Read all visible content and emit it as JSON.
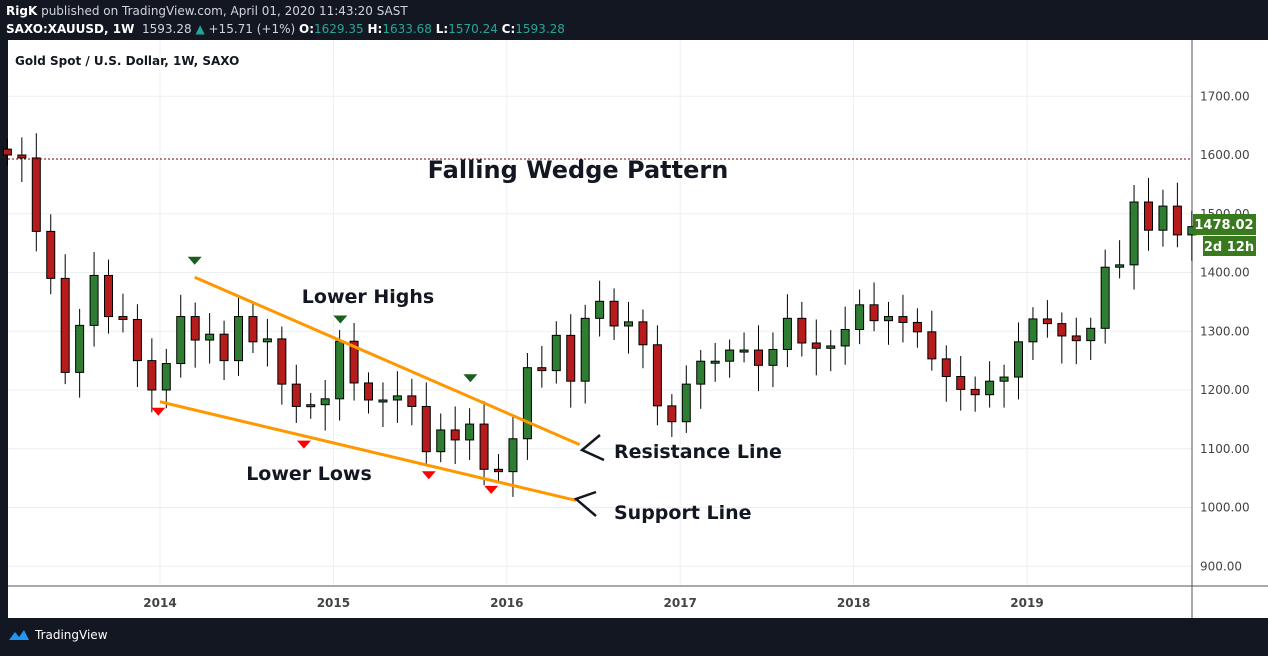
{
  "header": {
    "author": "RigK",
    "published": "published on TradingView.com, April 01, 2020 11:43:20 SAST",
    "symbol": "SAXO:XAUUSD, 1W",
    "last": "1593.28",
    "change": "+15.71 (+1%)",
    "o_label": "O:",
    "o": "1629.35",
    "h_label": "H:",
    "h": "1633.68",
    "l_label": "L:",
    "l": "1570.24",
    "c_label": "C:",
    "c": "1593.28"
  },
  "footer": {
    "brand": "TradingView"
  },
  "colors": {
    "up": "#2e7d32",
    "down": "#b71c1c",
    "trendline": "#ff9800",
    "marker_high": "#1b5e20",
    "marker_low": "#ff0000",
    "price_tag": "#3a7a1e"
  },
  "chart_data": {
    "type": "candlestick",
    "title": "Gold Spot / U.S. Dollar, 1W, SAXO",
    "annotation_title": "Falling Wedge Pattern",
    "ylim": [
      850,
      1800
    ],
    "xlim": [
      2013.12,
      2019.97
    ],
    "y_ticks": [
      "900.00",
      "1000.00",
      "1100.00",
      "1200.00",
      "1300.00",
      "1400.00",
      "1500.00",
      "1600.00",
      "1700.00"
    ],
    "x_ticks": [
      "2014",
      "2015",
      "2016",
      "2017",
      "2018",
      "2019"
    ],
    "grid": true,
    "start": 2013.12,
    "step": 0.0833,
    "open_first": 1610,
    "closes": [
      1600,
      1595,
      1470,
      1390,
      1230,
      1310,
      1395,
      1325,
      1320,
      1250,
      1200,
      1245,
      1325,
      1285,
      1295,
      1250,
      1325,
      1282,
      1287,
      1210,
      1172,
      1175,
      1185,
      1283,
      1212,
      1183,
      1183,
      1190,
      1172,
      1095,
      1132,
      1115,
      1142,
      1065,
      1061,
      1117,
      1238,
      1233,
      1293,
      1215,
      1322,
      1351,
      1309,
      1316,
      1277,
      1173,
      1146,
      1210,
      1249,
      1249,
      1268,
      1268,
      1242,
      1269,
      1322,
      1280,
      1271,
      1275,
      1303,
      1345,
      1318,
      1325,
      1315,
      1299,
      1253,
      1223,
      1201,
      1192,
      1215,
      1222,
      1282,
      1321,
      1313,
      1292,
      1284,
      1305,
      1409,
      1413,
      1520,
      1472,
      1513,
      1464,
      1478
    ],
    "current_price": "1478.02",
    "countdown": "2d 12h",
    "dotted_level": 1593.28,
    "resistance_line": [
      [
        2014.2,
        1392
      ],
      [
        2016.42,
        1107
      ]
    ],
    "support_line": [
      [
        2014.0,
        1180
      ],
      [
        2016.4,
        1012
      ]
    ],
    "lower_high_markers": [
      [
        2014.2,
        1420
      ],
      [
        2015.04,
        1320
      ],
      [
        2015.79,
        1220
      ]
    ],
    "lower_low_markers": [
      [
        2013.99,
        1163
      ],
      [
        2014.83,
        1107
      ],
      [
        2015.55,
        1055
      ],
      [
        2015.91,
        1030
      ]
    ],
    "labels": {
      "lower_highs": "Lower Highs",
      "lower_lows": "Lower Lows",
      "resistance": "Resistance Line",
      "support": "Support Line"
    }
  }
}
